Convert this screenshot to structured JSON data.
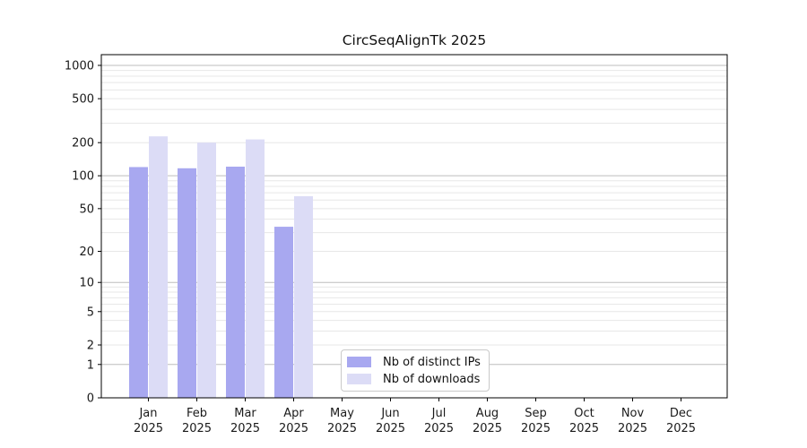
{
  "chart_data": {
    "type": "bar",
    "title": "CircSeqAlignTk 2025",
    "categories": [
      "Jan",
      "Feb",
      "Mar",
      "Apr",
      "May",
      "Jun",
      "Jul",
      "Aug",
      "Sep",
      "Oct",
      "Nov",
      "Dec"
    ],
    "x_sublabel": "2025",
    "series": [
      {
        "name": "Nb of distinct IPs",
        "color": "#a8a8f0",
        "values": [
          120,
          117,
          121,
          34,
          0,
          0,
          0,
          0,
          0,
          0,
          0,
          0
        ]
      },
      {
        "name": "Nb of downloads",
        "color": "#dcdcf6",
        "values": [
          228,
          200,
          214,
          65,
          0,
          0,
          0,
          0,
          0,
          0,
          0,
          0
        ]
      }
    ],
    "y_ticks": [
      0,
      1,
      2,
      5,
      10,
      20,
      50,
      100,
      200,
      500,
      1000
    ],
    "y_minor_gridlines": [
      3,
      4,
      6,
      7,
      8,
      9,
      30,
      40,
      60,
      70,
      80,
      90,
      300,
      400,
      600,
      700,
      800,
      900
    ],
    "scale": "log1p",
    "ylim": [
      0,
      1250
    ],
    "grid": true,
    "legend_position": "lower-center",
    "colors": {
      "major_grid": "#bdbdbd",
      "minor_grid": "#e7e7e7",
      "axis": "#000000",
      "text": "#1a1a1a",
      "background": "#ffffff"
    }
  }
}
